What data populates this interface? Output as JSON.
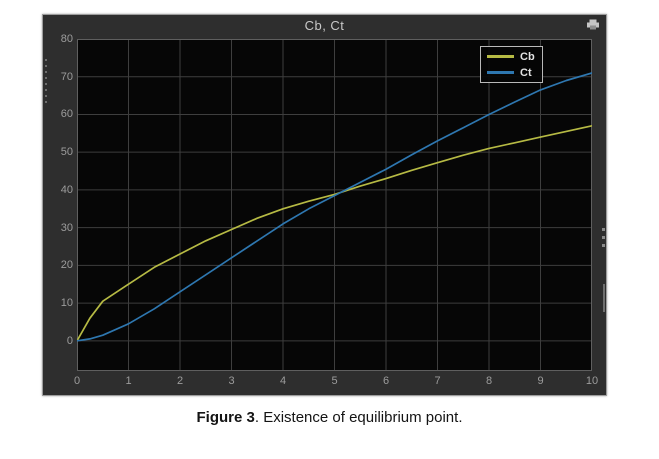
{
  "window": {
    "title": "Cb, Ct",
    "toolbar_icon": "print-icon"
  },
  "figure_caption": {
    "label": "Figure 3",
    "text": ". Existence of equilibrium point."
  },
  "colors": {
    "cb": "#b6ba44",
    "ct": "#2e77b0",
    "window_bg": "#2e2e2e",
    "plot_bg": "#060606",
    "grid": "#3e3e3e",
    "frame": "#5f5f5f",
    "tick_text": "#9c9c9c",
    "title_text": "#c9c9c9"
  },
  "chart_data": {
    "type": "line",
    "title": "Cb, Ct",
    "xlabel": "",
    "ylabel": "",
    "xlim": [
      0,
      10
    ],
    "ylim": [
      -8,
      80
    ],
    "xticks": [
      0,
      1,
      2,
      3,
      4,
      5,
      6,
      7,
      8,
      9,
      10
    ],
    "yticks": [
      0,
      10,
      20,
      30,
      40,
      50,
      60,
      70,
      80
    ],
    "grid": true,
    "legend_position": "top-right",
    "x": [
      0,
      0.25,
      0.5,
      1,
      1.5,
      2,
      2.5,
      3,
      3.5,
      4,
      4.5,
      5,
      5.5,
      6,
      6.5,
      7,
      7.5,
      8,
      8.5,
      9,
      9.5,
      10
    ],
    "series": [
      {
        "name": "Cb",
        "color": "#b6ba44",
        "values": [
          0,
          6,
          10.5,
          15,
          19.5,
          23,
          26.5,
          29.5,
          32.5,
          35,
          37,
          38.8,
          41,
          43,
          45.2,
          47.2,
          49.2,
          51,
          52.5,
          54,
          55.5,
          57
        ]
      },
      {
        "name": "Ct",
        "color": "#2e77b0",
        "values": [
          0,
          0.5,
          1.5,
          4.5,
          8.5,
          13,
          17.5,
          22,
          26.5,
          31,
          35,
          38.5,
          42,
          45.5,
          49.3,
          53,
          56.5,
          60,
          63.3,
          66.5,
          69,
          71
        ]
      }
    ],
    "annotations": [
      "Cb and Ct curves intersect near x = 5.1, y = 39 (equilibrium point)"
    ]
  }
}
